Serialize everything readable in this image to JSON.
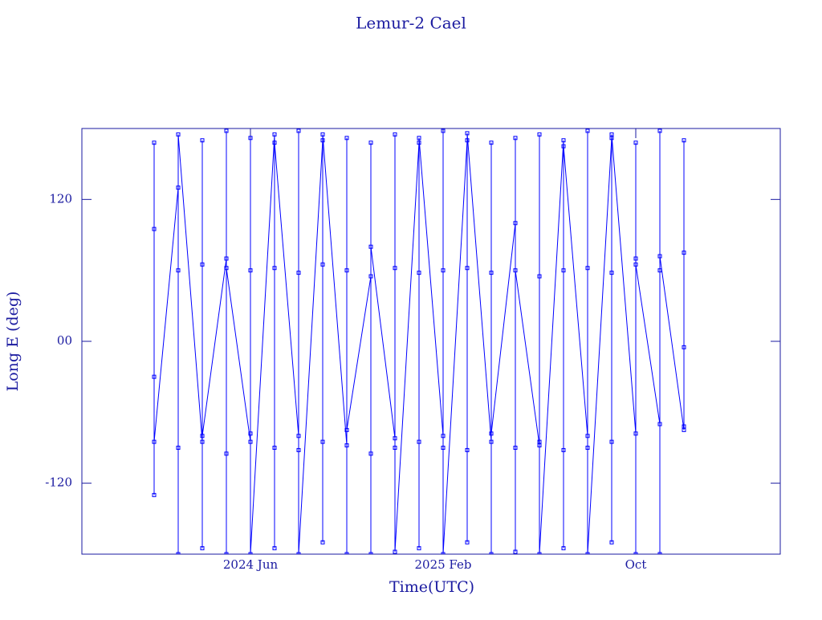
{
  "chart_data": {
    "type": "line",
    "title": "Lemur-2 Cael",
    "xlabel": "Time(UTC)",
    "ylabel": "Long E (deg)",
    "x": [
      "2024-02",
      "2024-02",
      "2024-02",
      "2024-02",
      "2024-02",
      "2024-03",
      "2024-03",
      "2024-03",
      "2024-03",
      "2024-03",
      "2024-04",
      "2024-04",
      "2024-04",
      "2024-04",
      "2024-04",
      "2024-05",
      "2024-05",
      "2024-05",
      "2024-05",
      "2024-05",
      "2024-06",
      "2024-06",
      "2024-06",
      "2024-06",
      "2024-06",
      "2024-07",
      "2024-07",
      "2024-07",
      "2024-07",
      "2024-07",
      "2024-08",
      "2024-08",
      "2024-08",
      "2024-08",
      "2024-08",
      "2024-09",
      "2024-09",
      "2024-09",
      "2024-09",
      "2024-09",
      "2024-10",
      "2024-10",
      "2024-10",
      "2024-10",
      "2024-10",
      "2024-11",
      "2024-11",
      "2024-11",
      "2024-11",
      "2024-11",
      "2024-12",
      "2024-12",
      "2024-12",
      "2024-12",
      "2024-12",
      "2025-01",
      "2025-01",
      "2025-01",
      "2025-01",
      "2025-01",
      "2025-02",
      "2025-02",
      "2025-02",
      "2025-02",
      "2025-02",
      "2025-03",
      "2025-03",
      "2025-03",
      "2025-03",
      "2025-03",
      "2025-04",
      "2025-04",
      "2025-04",
      "2025-04",
      "2025-04",
      "2025-05",
      "2025-05",
      "2025-05",
      "2025-05",
      "2025-05",
      "2025-06",
      "2025-06",
      "2025-06",
      "2025-06",
      "2025-06",
      "2025-07",
      "2025-07",
      "2025-07",
      "2025-07",
      "2025-07",
      "2025-08",
      "2025-08",
      "2025-08",
      "2025-08",
      "2025-08",
      "2025-09",
      "2025-09",
      "2025-09",
      "2025-09",
      "2025-09",
      "2025-10",
      "2025-10",
      "2025-10",
      "2025-10",
      "2025-10",
      "2025-11",
      "2025-11",
      "2025-11",
      "2025-11",
      "2025-11",
      "2025-12",
      "2025-12",
      "2025-12",
      "2025-12",
      "2025-12"
    ],
    "series": [
      {
        "color": "#0000ff",
        "values": [
          -30,
          168,
          -130,
          95,
          -85,
          130,
          -180,
          60,
          -90,
          175,
          -85,
          65,
          -175,
          170,
          -80,
          70,
          -95,
          178,
          -180,
          62,
          -85,
          172,
          60,
          -78,
          -180,
          175,
          -90,
          62,
          -175,
          168,
          -80,
          58,
          178,
          -92,
          -180,
          170,
          65,
          -85,
          -170,
          175,
          -88,
          60,
          -180,
          172,
          -75,
          55,
          -95,
          168,
          -180,
          80,
          -82,
          175,
          62,
          -90,
          -178,
          168,
          -85,
          58,
          -175,
          172,
          -80,
          60,
          178,
          -90,
          -180,
          170,
          62,
          -92,
          -170,
          176,
          -85,
          58,
          -180,
          168,
          -78,
          100,
          -90,
          172,
          -178,
          60,
          -88,
          175,
          55,
          -85,
          -180,
          170,
          -92,
          60,
          -175,
          165,
          -80,
          62,
          178,
          -90,
          -180,
          172,
          58,
          -85,
          -170,
          175,
          -78,
          70,
          -180,
          168,
          65,
          -70,
          178,
          60,
          -180,
          72,
          -75,
          170,
          75,
          -72,
          -5
        ]
      }
    ],
    "xlim": [
      "2023-11",
      "2026-04"
    ],
    "xticks": [
      {
        "value": "2024-06",
        "label": "2024 Jun"
      },
      {
        "value": "2025-02",
        "label": "2025 Feb"
      },
      {
        "value": "2025-10",
        "label": "Oct"
      }
    ],
    "ylim": [
      -180,
      180
    ],
    "yticks": [
      -120,
      {
        "value": 0,
        "label": "00"
      },
      120
    ]
  }
}
